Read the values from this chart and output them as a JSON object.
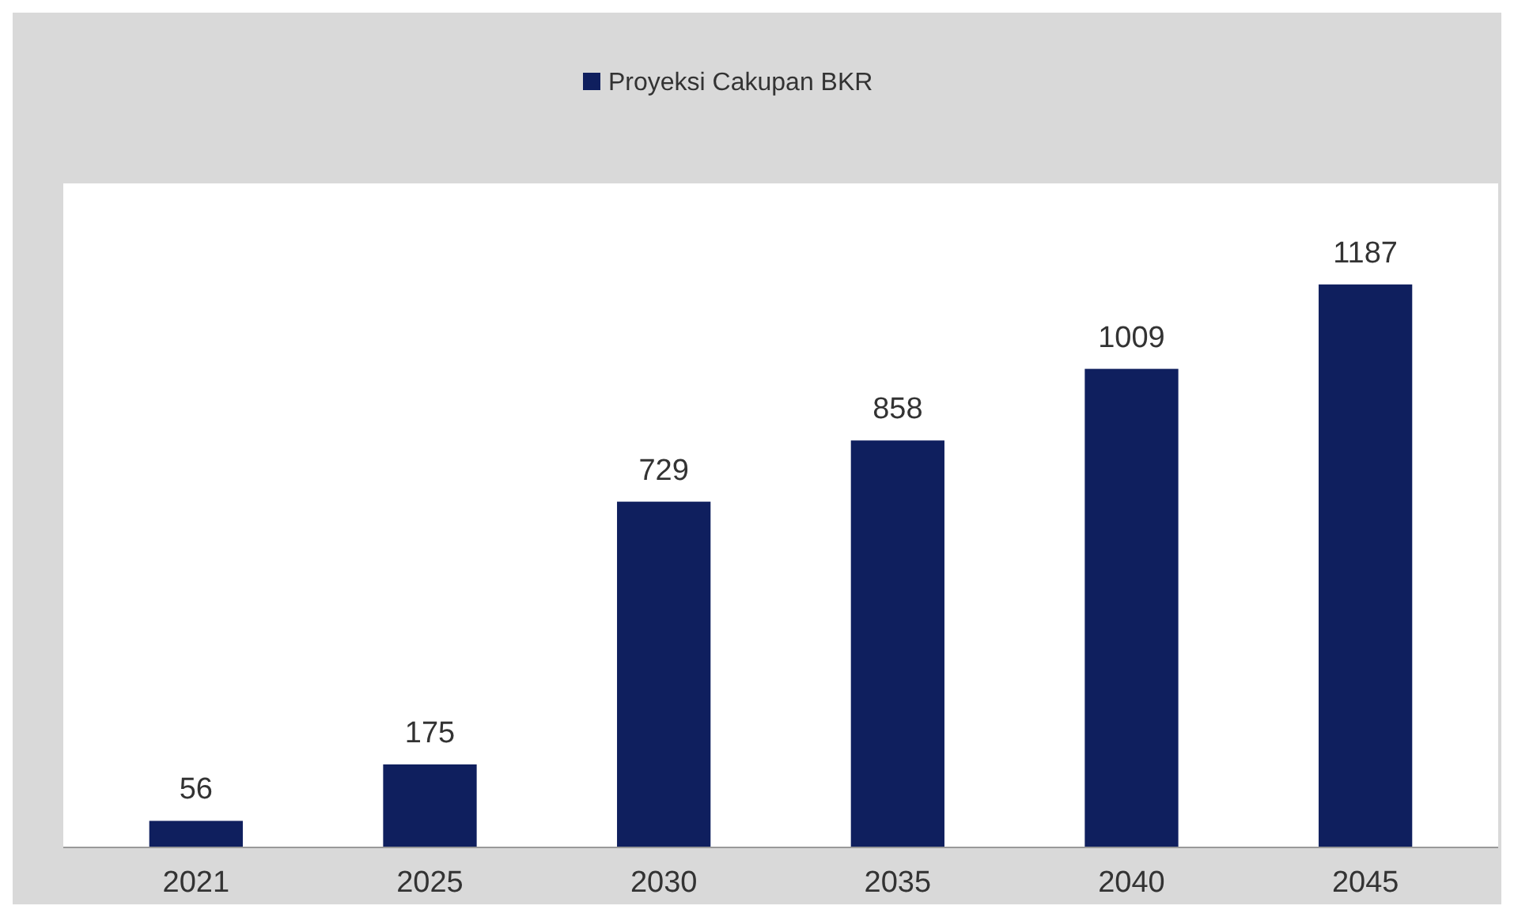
{
  "chart_data": {
    "type": "bar",
    "categories": [
      "2021",
      "2025",
      "2030",
      "2035",
      "2040",
      "2045"
    ],
    "series": [
      {
        "name": "Proyeksi Cakupan BKR",
        "color": "#0f1f5e",
        "values": [
          56,
          175,
          729,
          858,
          1009,
          1187
        ]
      }
    ],
    "ylim": [
      0,
      1400
    ],
    "data_labels": true,
    "legend": "top",
    "grid": false
  }
}
